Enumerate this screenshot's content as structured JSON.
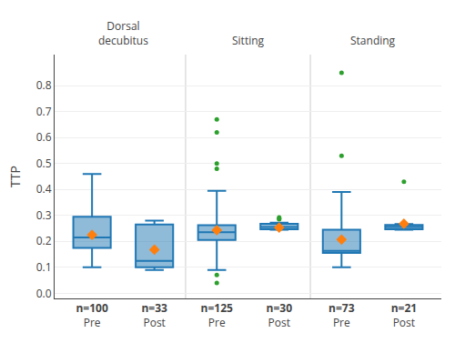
{
  "chart_data": {
    "type": "box",
    "ylabel": "TTP",
    "ylim": [
      -0.02,
      0.92
    ],
    "yticks": [
      {
        "value": 0.0,
        "label": "0.0"
      },
      0.1,
      0.2,
      0.3,
      0.4,
      0.5,
      0.6,
      0.7,
      0.8
    ],
    "grid": true,
    "marker": "diamond",
    "groups": [
      {
        "label": "Dorsal\ndecubitus",
        "boxes": [
          {
            "name": "Pre",
            "n": "n=100",
            "q1": 0.175,
            "median": 0.215,
            "q3": 0.295,
            "whisker_low": 0.1,
            "whisker_high": 0.46,
            "mean": 0.225,
            "outliers": []
          },
          {
            "name": "Post",
            "n": "n=33",
            "q1": 0.1,
            "median": 0.125,
            "q3": 0.265,
            "whisker_low": 0.09,
            "whisker_high": 0.28,
            "mean": 0.168,
            "outliers": []
          }
        ]
      },
      {
        "label": "Sitting",
        "boxes": [
          {
            "name": "Pre",
            "n": "n=125",
            "q1": 0.205,
            "median": 0.235,
            "q3": 0.262,
            "whisker_low": 0.09,
            "whisker_high": 0.395,
            "mean": 0.243,
            "outliers": [
              0.48,
              0.5,
              0.62,
              0.67,
              0.04,
              0.07
            ]
          },
          {
            "name": "Post",
            "n": "n=30",
            "q1": 0.247,
            "median": 0.255,
            "q3": 0.268,
            "whisker_low": 0.245,
            "whisker_high": 0.272,
            "mean": 0.253,
            "outliers": [
              0.285,
              0.288,
              0.292
            ]
          }
        ]
      },
      {
        "label": "Standing",
        "boxes": [
          {
            "name": "Pre",
            "n": "n=73",
            "q1": 0.155,
            "median": 0.163,
            "q3": 0.245,
            "whisker_low": 0.1,
            "whisker_high": 0.39,
            "mean": 0.207,
            "outliers": [
              0.53,
              0.85
            ]
          },
          {
            "name": "Post",
            "n": "n=21",
            "q1": 0.247,
            "median": 0.255,
            "q3": 0.263,
            "whisker_low": 0.245,
            "whisker_high": 0.267,
            "mean": 0.268,
            "outliers": [
              0.43
            ]
          }
        ]
      }
    ]
  }
}
